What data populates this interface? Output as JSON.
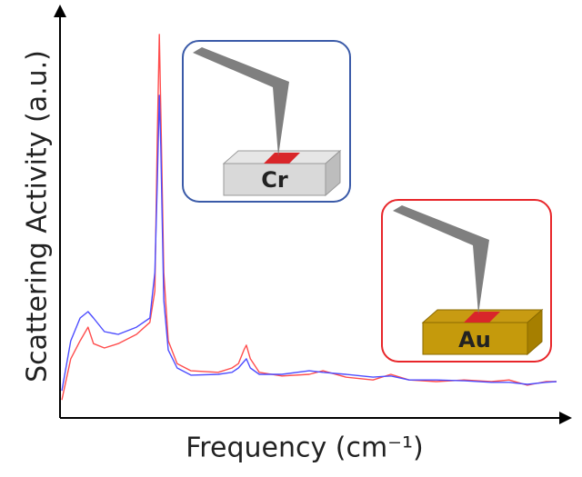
{
  "chart_data": {
    "type": "line",
    "y_label": "Scattering Activity (a.u.)",
    "x_label": "Frequency (cm⁻¹)",
    "x": [
      0,
      1.8,
      3.7,
      5.3,
      6.4,
      8.6,
      11.4,
      15.1,
      17.8,
      18.8,
      19.3,
      19.7,
      20.0,
      20.6,
      21.5,
      23.3,
      26.1,
      31.6,
      34.4,
      35.7,
      36.8,
      37.3,
      38.1,
      39.9,
      44.5,
      50.0,
      52.8,
      57.4,
      62.9,
      66.5,
      70.2,
      75.7,
      81.3,
      86.8,
      90.4,
      94.1,
      97.8,
      100
    ],
    "xlim": [
      0,
      100
    ],
    "ylim": [
      0,
      100
    ],
    "series": [
      {
        "color": "#ff4d4d",
        "values": [
          4.5,
          14.8,
          19.3,
          22.7,
          18.6,
          17.5,
          18.6,
          20.9,
          23.9,
          31.8,
          70.5,
          95.9,
          77.3,
          36.4,
          19.3,
          13.6,
          11.8,
          11.4,
          12.5,
          13.6,
          17.0,
          18.2,
          14.8,
          11.4,
          10.5,
          10.9,
          11.8,
          10.2,
          9.5,
          10.9,
          9.5,
          9.1,
          9.5,
          9.1,
          9.5,
          8.2,
          9.1,
          9.1
        ]
      },
      {
        "color": "#4d4dff",
        "values": [
          6.8,
          19.3,
          25.0,
          26.6,
          25.0,
          21.6,
          20.9,
          22.7,
          25.0,
          36.4,
          59.1,
          80.7,
          68.2,
          29.5,
          17.0,
          12.5,
          10.7,
          10.9,
          11.4,
          12.5,
          14.1,
          14.8,
          12.5,
          10.9,
          10.9,
          11.8,
          11.4,
          10.9,
          10.2,
          10.5,
          9.5,
          9.5,
          9.3,
          8.9,
          8.9,
          8.4,
          8.9,
          9.1
        ]
      }
    ],
    "annotations": [
      {
        "text": "Cr",
        "color": "#3a5aa8"
      },
      {
        "text": "Au",
        "color": "#e8262a"
      }
    ]
  }
}
